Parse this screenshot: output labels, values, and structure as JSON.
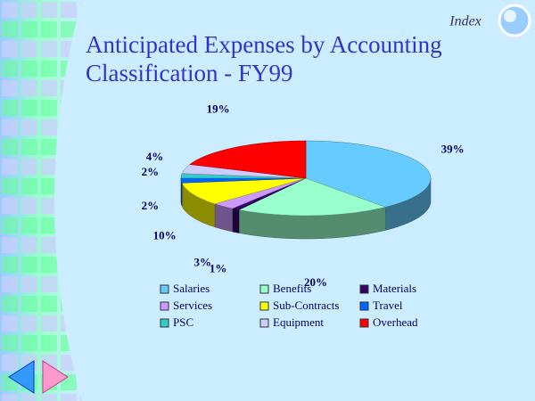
{
  "nav": {
    "index": "Index"
  },
  "chart_data": {
    "type": "pie",
    "title": "Anticipated Expenses by Accounting Classification - FY99",
    "categories": [
      "Salaries",
      "Benefits",
      "Materials",
      "Services",
      "Sub-Contracts",
      "Travel",
      "PSC",
      "Equipment",
      "Overhead"
    ],
    "values": [
      39,
      20,
      1,
      3,
      10,
      2,
      2,
      4,
      19
    ],
    "value_labels": [
      "39%",
      "20%",
      "1%",
      "3%",
      "10%",
      "2%",
      "2%",
      "4%",
      "19%"
    ],
    "colors": [
      "#66ccff",
      "#99ffcc",
      "#330066",
      "#cc99ff",
      "#ffff00",
      "#0066ff",
      "#33cccc",
      "#ccccff",
      "#ff0000"
    ]
  }
}
